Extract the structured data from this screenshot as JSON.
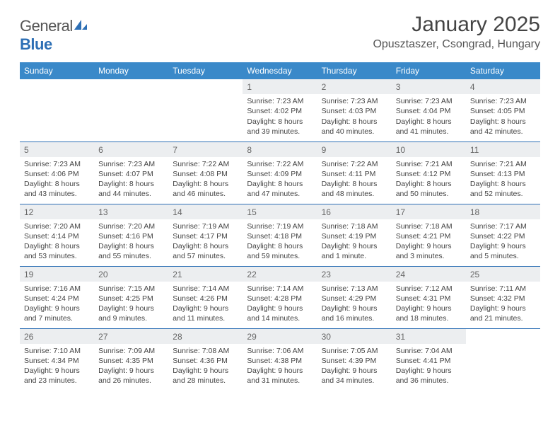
{
  "brand": {
    "word1": "General",
    "word2": "Blue"
  },
  "title": "January 2025",
  "location": "Opusztaszer, Csongrad, Hungary",
  "colors": {
    "header_bg": "#3a89c9",
    "rule": "#2d6fb5",
    "daynum_bg": "#eceef0",
    "text": "#444444"
  },
  "day_headers": [
    "Sunday",
    "Monday",
    "Tuesday",
    "Wednesday",
    "Thursday",
    "Friday",
    "Saturday"
  ],
  "weeks": [
    [
      null,
      null,
      null,
      {
        "n": "1",
        "sr": "Sunrise: 7:23 AM",
        "ss": "Sunset: 4:02 PM",
        "dl": "Daylight: 8 hours and 39 minutes."
      },
      {
        "n": "2",
        "sr": "Sunrise: 7:23 AM",
        "ss": "Sunset: 4:03 PM",
        "dl": "Daylight: 8 hours and 40 minutes."
      },
      {
        "n": "3",
        "sr": "Sunrise: 7:23 AM",
        "ss": "Sunset: 4:04 PM",
        "dl": "Daylight: 8 hours and 41 minutes."
      },
      {
        "n": "4",
        "sr": "Sunrise: 7:23 AM",
        "ss": "Sunset: 4:05 PM",
        "dl": "Daylight: 8 hours and 42 minutes."
      }
    ],
    [
      {
        "n": "5",
        "sr": "Sunrise: 7:23 AM",
        "ss": "Sunset: 4:06 PM",
        "dl": "Daylight: 8 hours and 43 minutes."
      },
      {
        "n": "6",
        "sr": "Sunrise: 7:23 AM",
        "ss": "Sunset: 4:07 PM",
        "dl": "Daylight: 8 hours and 44 minutes."
      },
      {
        "n": "7",
        "sr": "Sunrise: 7:22 AM",
        "ss": "Sunset: 4:08 PM",
        "dl": "Daylight: 8 hours and 46 minutes."
      },
      {
        "n": "8",
        "sr": "Sunrise: 7:22 AM",
        "ss": "Sunset: 4:09 PM",
        "dl": "Daylight: 8 hours and 47 minutes."
      },
      {
        "n": "9",
        "sr": "Sunrise: 7:22 AM",
        "ss": "Sunset: 4:11 PM",
        "dl": "Daylight: 8 hours and 48 minutes."
      },
      {
        "n": "10",
        "sr": "Sunrise: 7:21 AM",
        "ss": "Sunset: 4:12 PM",
        "dl": "Daylight: 8 hours and 50 minutes."
      },
      {
        "n": "11",
        "sr": "Sunrise: 7:21 AM",
        "ss": "Sunset: 4:13 PM",
        "dl": "Daylight: 8 hours and 52 minutes."
      }
    ],
    [
      {
        "n": "12",
        "sr": "Sunrise: 7:20 AM",
        "ss": "Sunset: 4:14 PM",
        "dl": "Daylight: 8 hours and 53 minutes."
      },
      {
        "n": "13",
        "sr": "Sunrise: 7:20 AM",
        "ss": "Sunset: 4:16 PM",
        "dl": "Daylight: 8 hours and 55 minutes."
      },
      {
        "n": "14",
        "sr": "Sunrise: 7:19 AM",
        "ss": "Sunset: 4:17 PM",
        "dl": "Daylight: 8 hours and 57 minutes."
      },
      {
        "n": "15",
        "sr": "Sunrise: 7:19 AM",
        "ss": "Sunset: 4:18 PM",
        "dl": "Daylight: 8 hours and 59 minutes."
      },
      {
        "n": "16",
        "sr": "Sunrise: 7:18 AM",
        "ss": "Sunset: 4:19 PM",
        "dl": "Daylight: 9 hours and 1 minute."
      },
      {
        "n": "17",
        "sr": "Sunrise: 7:18 AM",
        "ss": "Sunset: 4:21 PM",
        "dl": "Daylight: 9 hours and 3 minutes."
      },
      {
        "n": "18",
        "sr": "Sunrise: 7:17 AM",
        "ss": "Sunset: 4:22 PM",
        "dl": "Daylight: 9 hours and 5 minutes."
      }
    ],
    [
      {
        "n": "19",
        "sr": "Sunrise: 7:16 AM",
        "ss": "Sunset: 4:24 PM",
        "dl": "Daylight: 9 hours and 7 minutes."
      },
      {
        "n": "20",
        "sr": "Sunrise: 7:15 AM",
        "ss": "Sunset: 4:25 PM",
        "dl": "Daylight: 9 hours and 9 minutes."
      },
      {
        "n": "21",
        "sr": "Sunrise: 7:14 AM",
        "ss": "Sunset: 4:26 PM",
        "dl": "Daylight: 9 hours and 11 minutes."
      },
      {
        "n": "22",
        "sr": "Sunrise: 7:14 AM",
        "ss": "Sunset: 4:28 PM",
        "dl": "Daylight: 9 hours and 14 minutes."
      },
      {
        "n": "23",
        "sr": "Sunrise: 7:13 AM",
        "ss": "Sunset: 4:29 PM",
        "dl": "Daylight: 9 hours and 16 minutes."
      },
      {
        "n": "24",
        "sr": "Sunrise: 7:12 AM",
        "ss": "Sunset: 4:31 PM",
        "dl": "Daylight: 9 hours and 18 minutes."
      },
      {
        "n": "25",
        "sr": "Sunrise: 7:11 AM",
        "ss": "Sunset: 4:32 PM",
        "dl": "Daylight: 9 hours and 21 minutes."
      }
    ],
    [
      {
        "n": "26",
        "sr": "Sunrise: 7:10 AM",
        "ss": "Sunset: 4:34 PM",
        "dl": "Daylight: 9 hours and 23 minutes."
      },
      {
        "n": "27",
        "sr": "Sunrise: 7:09 AM",
        "ss": "Sunset: 4:35 PM",
        "dl": "Daylight: 9 hours and 26 minutes."
      },
      {
        "n": "28",
        "sr": "Sunrise: 7:08 AM",
        "ss": "Sunset: 4:36 PM",
        "dl": "Daylight: 9 hours and 28 minutes."
      },
      {
        "n": "29",
        "sr": "Sunrise: 7:06 AM",
        "ss": "Sunset: 4:38 PM",
        "dl": "Daylight: 9 hours and 31 minutes."
      },
      {
        "n": "30",
        "sr": "Sunrise: 7:05 AM",
        "ss": "Sunset: 4:39 PM",
        "dl": "Daylight: 9 hours and 34 minutes."
      },
      {
        "n": "31",
        "sr": "Sunrise: 7:04 AM",
        "ss": "Sunset: 4:41 PM",
        "dl": "Daylight: 9 hours and 36 minutes."
      },
      null
    ]
  ]
}
